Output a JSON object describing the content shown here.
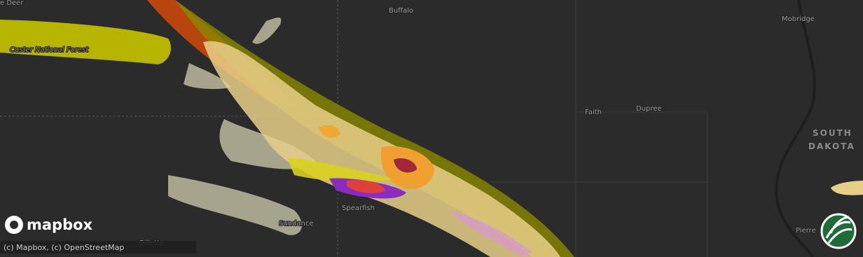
{
  "map": {
    "places": [
      "e Deer",
      "Buffalo",
      "Mobridge",
      "Custer National Forest",
      "Faith",
      "Dupree",
      "Spearfish",
      "Sundance",
      "Gillette",
      "Pierre"
    ],
    "state_label": [
      "SOUTH",
      "DAKOTA"
    ]
  },
  "logo": "mapbox",
  "attribution": "(c) Mapbox, (c) OpenStreetMap"
}
